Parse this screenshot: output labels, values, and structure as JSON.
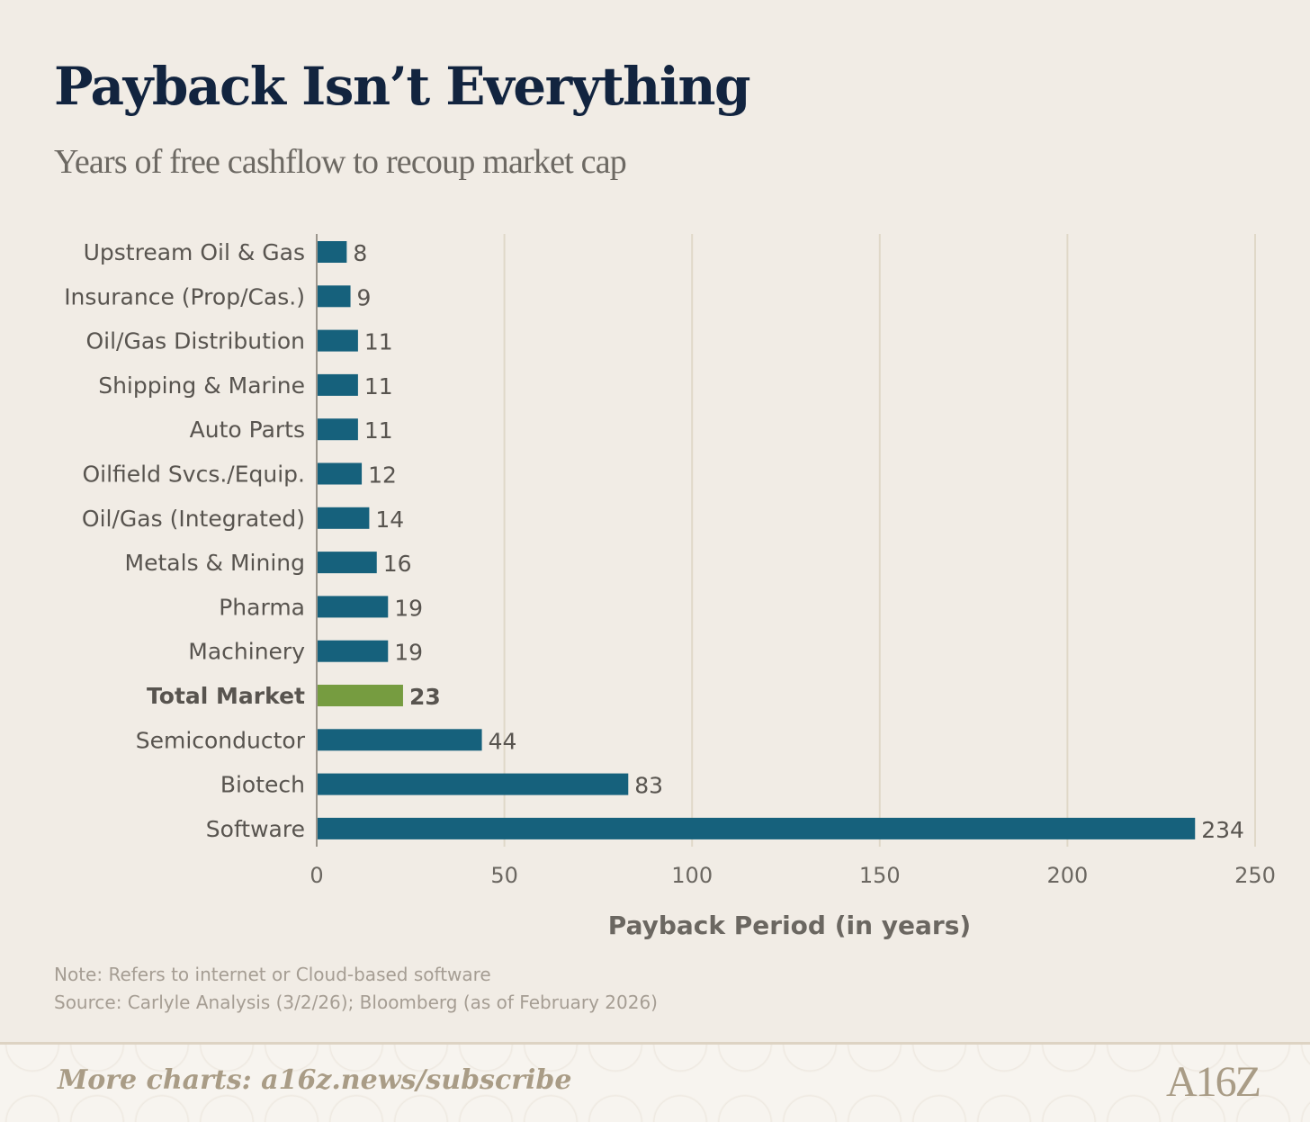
{
  "title": "Payback Isn’t Everything",
  "subtitle": "Years of free cashflow to recoup market cap",
  "chart_data": {
    "type": "bar",
    "orientation": "horizontal",
    "categories": [
      "Upstream Oil & Gas",
      "Insurance (Prop/Cas.)",
      "Oil/Gas Distribution",
      "Shipping & Marine",
      "Auto Parts",
      "Oilfield Svcs./Equip.",
      "Oil/Gas (Integrated)",
      "Metals & Mining",
      "Pharma",
      "Machinery",
      "Total Market",
      "Semiconductor",
      "Biotech",
      "Software"
    ],
    "values": [
      8,
      9,
      11,
      11,
      11,
      12,
      14,
      16,
      19,
      19,
      23,
      44,
      83,
      234
    ],
    "highlight": "Total Market",
    "xlabel": "Payback Period (in years)",
    "ylabel": "",
    "xlim": [
      0,
      250
    ],
    "xticks": [
      0,
      50,
      100,
      150,
      200,
      250
    ],
    "grid": "vertical",
    "colors": {
      "bar": "#16617c",
      "highlight": "#769c40",
      "grid": "#e0d8c8",
      "axis": "#9b958c"
    }
  },
  "notes": {
    "note": "Note: Refers to internet or Cloud-based software",
    "source": "Source: Carlyle Analysis (3/2/26); Bloomberg (as of February 2026)"
  },
  "footer": {
    "link": "More charts: a16z.news/subscribe",
    "logo": "A16Z"
  }
}
